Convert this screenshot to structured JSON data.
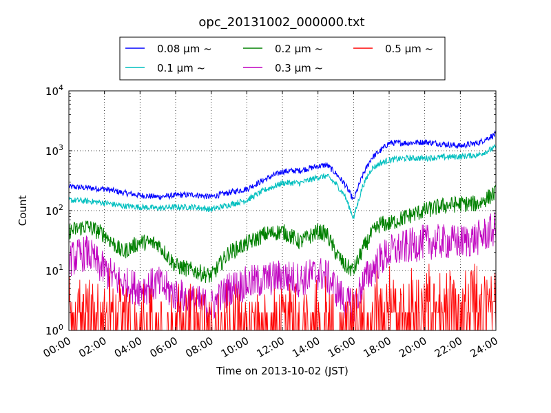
{
  "chart_data": {
    "type": "line",
    "title": "opc_20131002_000000.txt",
    "xlabel": "Time on 2013-10-02 (JST)",
    "ylabel": "Count",
    "y_scale": "log",
    "ylim": [
      1,
      10000
    ],
    "xlim": [
      "00:00",
      "24:00"
    ],
    "grid": true,
    "legend_position": "top, above plot",
    "x_tick_labels": [
      "00:00",
      "02:00",
      "04:00",
      "06:00",
      "08:00",
      "10:00",
      "12:00",
      "14:00",
      "16:00",
      "18:00",
      "20:00",
      "22:00",
      "24:00"
    ],
    "y_tick_labels": [
      {
        "base": "10",
        "exp": "0"
      },
      {
        "base": "10",
        "exp": "1"
      },
      {
        "base": "10",
        "exp": "2"
      },
      {
        "base": "10",
        "exp": "3"
      },
      {
        "base": "10",
        "exp": "4"
      }
    ],
    "x": [
      0,
      1,
      2,
      3,
      4,
      5,
      6,
      7,
      8,
      9,
      10,
      11,
      12,
      13,
      14,
      14.5,
      15,
      15.5,
      16,
      16.5,
      17,
      17.5,
      18,
      19,
      20,
      21,
      22,
      23,
      24
    ],
    "series": [
      {
        "name": "0.08 μm ~",
        "color": "#0000ff",
        "noise": 0.05,
        "values": [
          250,
          240,
          230,
          200,
          180,
          170,
          180,
          185,
          170,
          200,
          230,
          330,
          450,
          470,
          550,
          580,
          420,
          280,
          150,
          380,
          750,
          1000,
          1350,
          1350,
          1400,
          1300,
          1200,
          1350,
          1900
        ]
      },
      {
        "name": "0.1 μm ~",
        "color": "#00bfbf",
        "noise": 0.05,
        "values": [
          150,
          145,
          135,
          120,
          115,
          110,
          115,
          115,
          105,
          125,
          150,
          220,
          290,
          290,
          360,
          380,
          280,
          180,
          75,
          250,
          500,
          620,
          700,
          750,
          750,
          780,
          800,
          850,
          1150
        ]
      },
      {
        "name": "0.2 μm ~",
        "color": "#008000",
        "noise": 0.14,
        "values": [
          45,
          55,
          40,
          20,
          30,
          28,
          12,
          10,
          8,
          20,
          28,
          40,
          45,
          30,
          45,
          40,
          20,
          12,
          10,
          22,
          40,
          60,
          60,
          80,
          100,
          120,
          130,
          130,
          200
        ]
      },
      {
        "name": "0.3 μm ~",
        "color": "#bf00bf",
        "noise": 0.3,
        "values": [
          15,
          20,
          10,
          6,
          5,
          6,
          4,
          3,
          2.5,
          5,
          6,
          7,
          8,
          7,
          9,
          8,
          5,
          3,
          2.5,
          6,
          10,
          15,
          20,
          25,
          30,
          30,
          30,
          35,
          50
        ]
      },
      {
        "name": "0.5 μm ~",
        "color": "#ff0000",
        "noise": 0.0,
        "values": [
          2,
          2,
          1.5,
          1.5,
          1.2,
          1.2,
          1.2,
          1.2,
          1.1,
          1.2,
          1.5,
          1.5,
          1.5,
          1.5,
          1.5,
          1.5,
          1.3,
          1.2,
          1.2,
          1.4,
          1.8,
          2,
          2,
          2.2,
          2.3,
          2.5,
          2.5,
          3,
          5
        ]
      }
    ]
  }
}
